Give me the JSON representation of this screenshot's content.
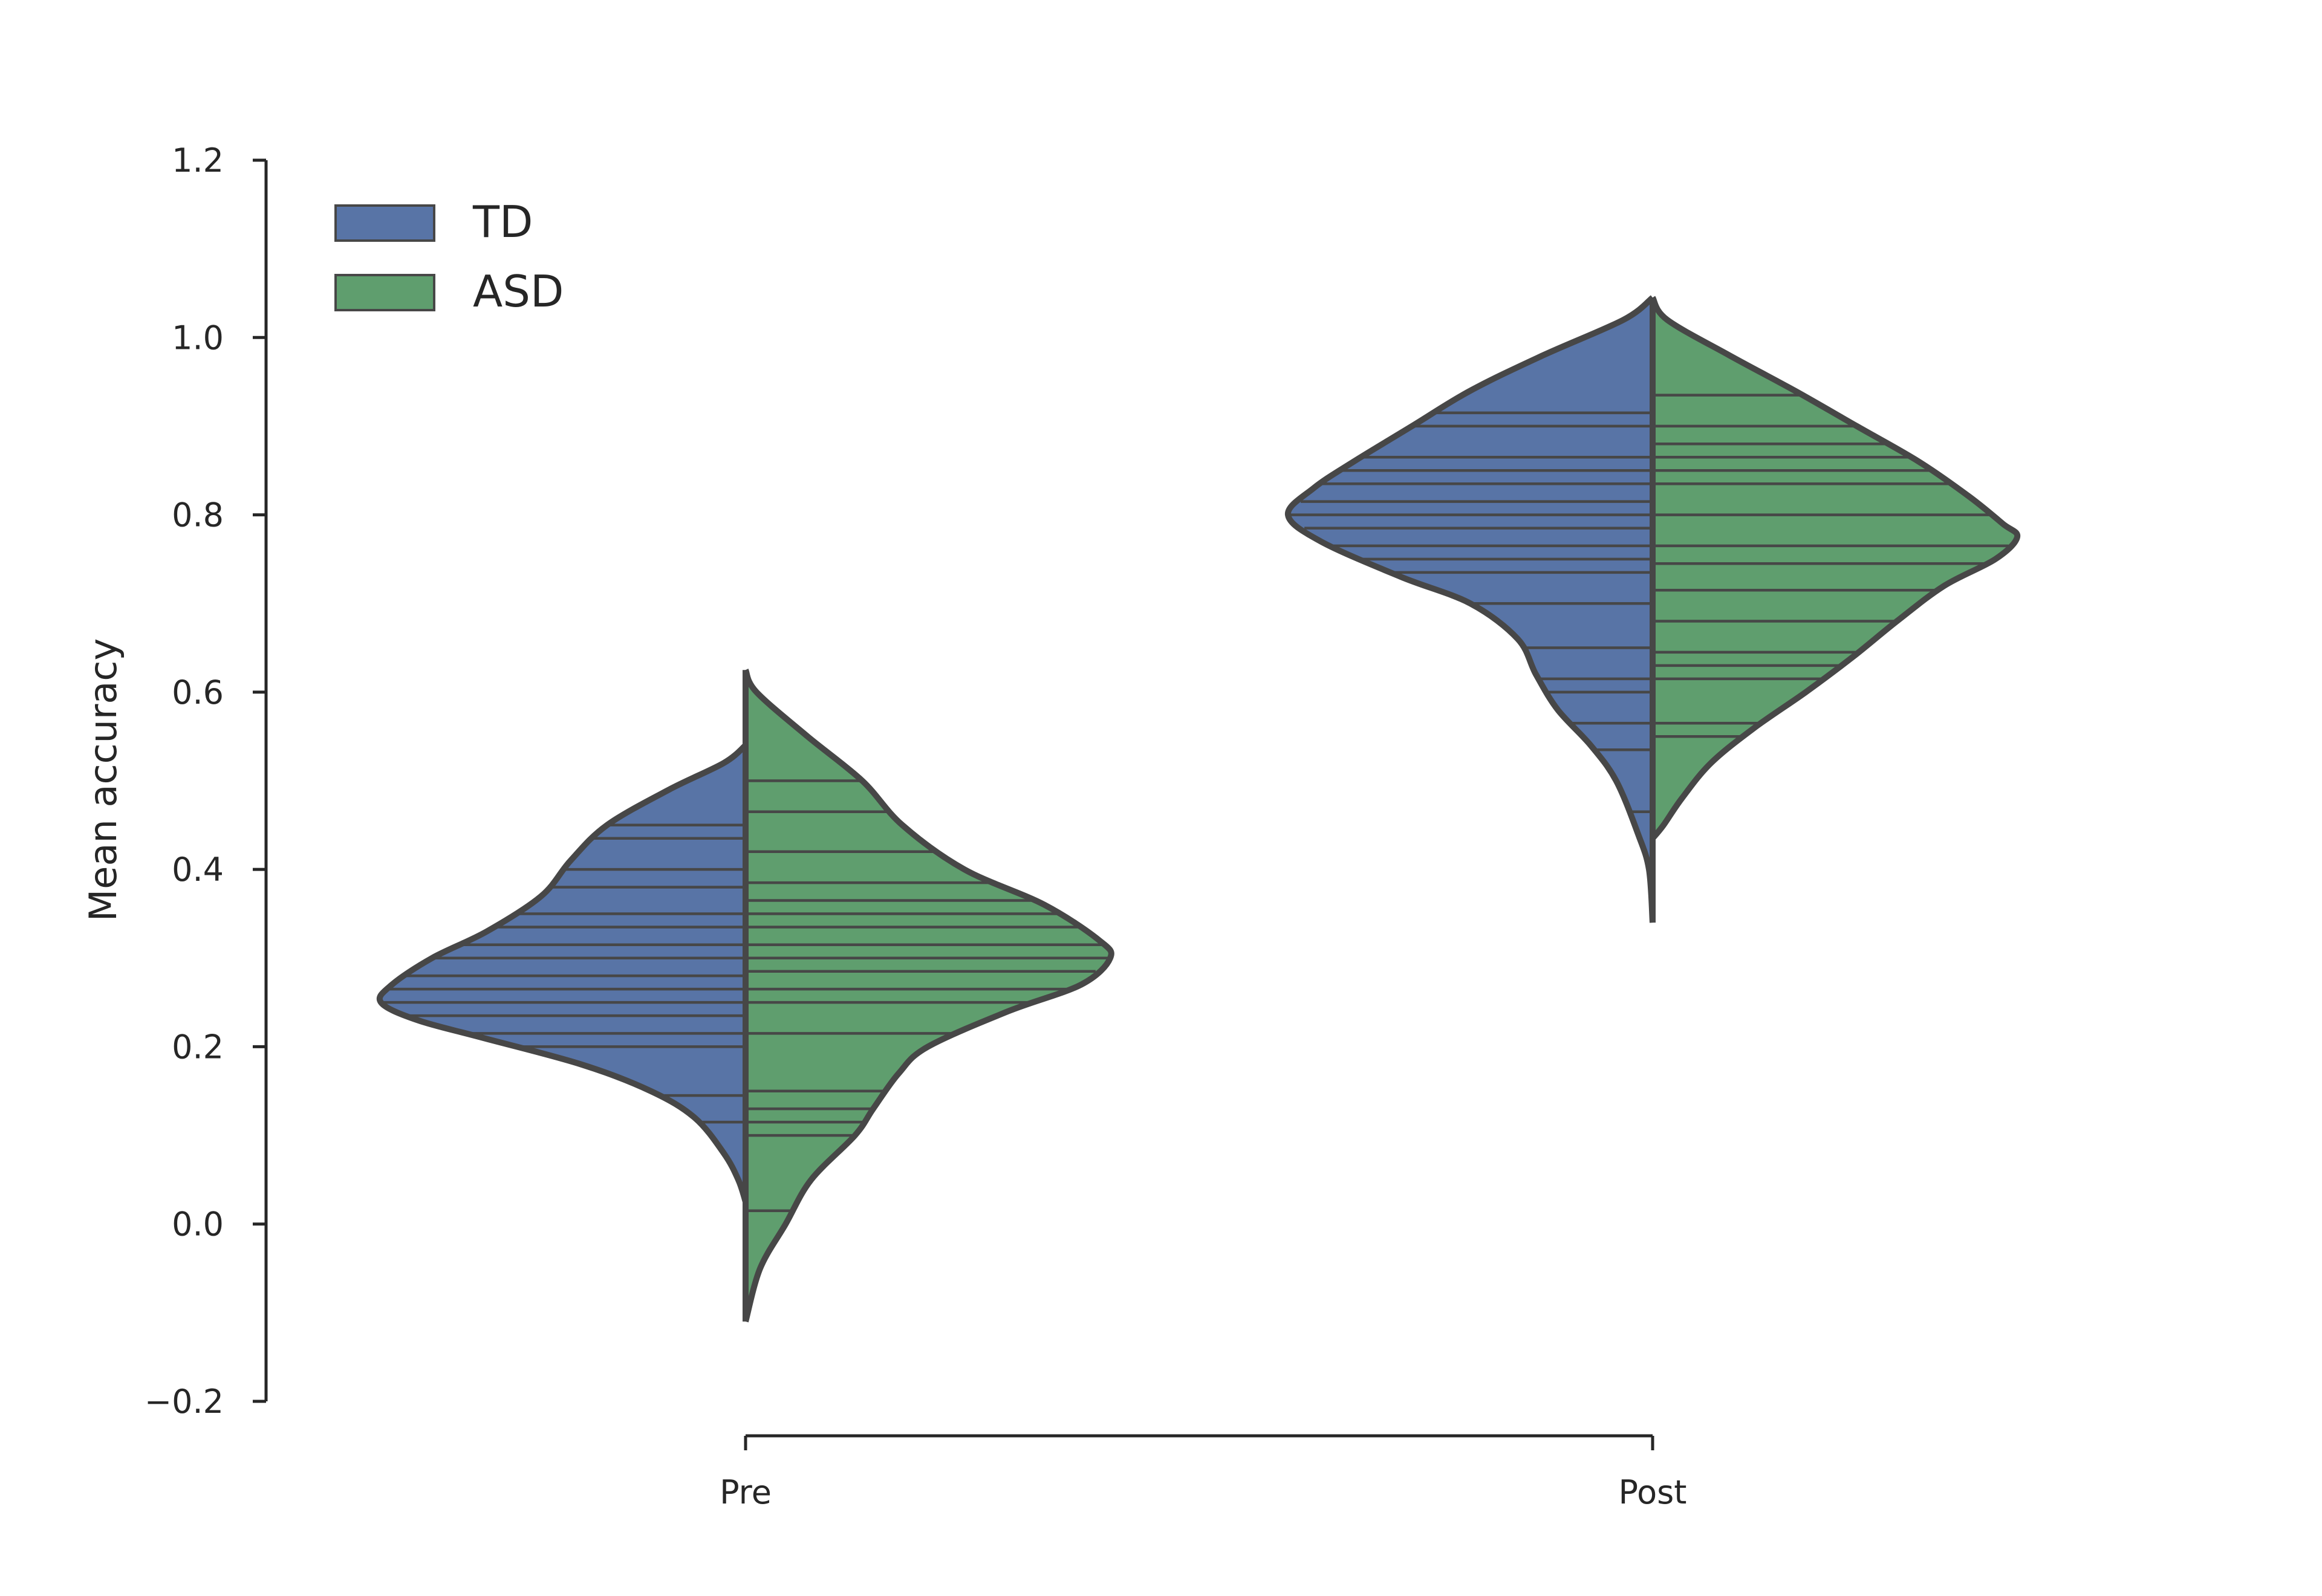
{
  "chart_data": {
    "type": "violin",
    "split": true,
    "categories": [
      "Pre",
      "Post"
    ],
    "ylabel": "Mean accuracy",
    "xlabel": "",
    "ylim": [
      -0.2,
      1.2
    ],
    "yticks": [
      -0.2,
      0.0,
      0.2,
      0.4,
      0.6,
      0.8,
      1.0,
      1.2
    ],
    "ytick_labels": [
      "−0.2",
      "0.0",
      "0.2",
      "0.4",
      "0.6",
      "0.8",
      "1.0",
      "1.2"
    ],
    "legend": {
      "placement": "top-left"
    },
    "series": [
      {
        "name": "TD",
        "color": "#5874a6",
        "groups": [
          {
            "category": "Pre",
            "density_profile": [
              [
                0.54,
                0.0
              ],
              [
                0.52,
                0.06
              ],
              [
                0.49,
                0.21
              ],
              [
                0.45,
                0.38
              ],
              [
                0.41,
                0.48
              ],
              [
                0.37,
                0.56
              ],
              [
                0.33,
                0.71
              ],
              [
                0.3,
                0.86
              ],
              [
                0.27,
                0.97
              ],
              [
                0.25,
                1.0
              ],
              [
                0.23,
                0.9
              ],
              [
                0.21,
                0.72
              ],
              [
                0.18,
                0.45
              ],
              [
                0.15,
                0.26
              ],
              [
                0.12,
                0.14
              ],
              [
                0.08,
                0.06
              ],
              [
                0.05,
                0.02
              ],
              [
                0.025,
                0.0
              ]
            ],
            "observations": [
              0.115,
              0.145,
              0.2,
              0.215,
              0.235,
              0.25,
              0.265,
              0.28,
              0.3,
              0.315,
              0.335,
              0.35,
              0.38,
              0.4,
              0.435,
              0.45
            ]
          },
          {
            "category": "Post",
            "density_profile": [
              [
                1.045,
                0.0
              ],
              [
                1.02,
                0.08
              ],
              [
                0.98,
                0.3
              ],
              [
                0.94,
                0.5
              ],
              [
                0.9,
                0.66
              ],
              [
                0.86,
                0.82
              ],
              [
                0.83,
                0.93
              ],
              [
                0.8,
                1.0
              ],
              [
                0.77,
                0.91
              ],
              [
                0.73,
                0.69
              ],
              [
                0.7,
                0.5
              ],
              [
                0.66,
                0.37
              ],
              [
                0.62,
                0.32
              ],
              [
                0.58,
                0.26
              ],
              [
                0.54,
                0.17
              ],
              [
                0.5,
                0.1
              ],
              [
                0.44,
                0.04
              ],
              [
                0.4,
                0.01
              ],
              [
                0.34,
                0.0
              ]
            ],
            "observations": [
              0.465,
              0.535,
              0.565,
              0.6,
              0.615,
              0.65,
              0.7,
              0.735,
              0.75,
              0.765,
              0.785,
              0.8,
              0.815,
              0.835,
              0.85,
              0.865,
              0.9,
              0.915
            ]
          }
        ]
      },
      {
        "name": "ASD",
        "color": "#5f9e6e",
        "groups": [
          {
            "category": "Pre",
            "density_profile": [
              [
                0.625,
                0.0
              ],
              [
                0.6,
                0.03
              ],
              [
                0.55,
                0.17
              ],
              [
                0.5,
                0.32
              ],
              [
                0.45,
                0.43
              ],
              [
                0.4,
                0.6
              ],
              [
                0.36,
                0.82
              ],
              [
                0.32,
                0.97
              ],
              [
                0.3,
                1.0
              ],
              [
                0.27,
                0.92
              ],
              [
                0.24,
                0.72
              ],
              [
                0.2,
                0.5
              ],
              [
                0.17,
                0.42
              ],
              [
                0.13,
                0.35
              ],
              [
                0.1,
                0.3
              ],
              [
                0.05,
                0.18
              ],
              [
                0.0,
                0.11
              ],
              [
                -0.05,
                0.04
              ],
              [
                -0.11,
                0.0
              ]
            ],
            "observations": [
              0.015,
              0.1,
              0.115,
              0.13,
              0.15,
              0.215,
              0.25,
              0.265,
              0.285,
              0.3,
              0.315,
              0.335,
              0.35,
              0.365,
              0.385,
              0.42,
              0.465,
              0.5
            ]
          },
          {
            "category": "Post",
            "density_profile": [
              [
                1.045,
                0.0
              ],
              [
                1.02,
                0.04
              ],
              [
                0.98,
                0.21
              ],
              [
                0.94,
                0.39
              ],
              [
                0.9,
                0.56
              ],
              [
                0.86,
                0.73
              ],
              [
                0.82,
                0.87
              ],
              [
                0.79,
                0.96
              ],
              [
                0.775,
                1.0
              ],
              [
                0.75,
                0.94
              ],
              [
                0.72,
                0.8
              ],
              [
                0.68,
                0.67
              ],
              [
                0.64,
                0.55
              ],
              [
                0.6,
                0.42
              ],
              [
                0.56,
                0.28
              ],
              [
                0.52,
                0.16
              ],
              [
                0.48,
                0.08
              ],
              [
                0.45,
                0.03
              ],
              [
                0.435,
                0.0
              ]
            ],
            "observations": [
              0.55,
              0.565,
              0.615,
              0.63,
              0.645,
              0.68,
              0.715,
              0.745,
              0.765,
              0.8,
              0.835,
              0.85,
              0.865,
              0.88,
              0.9,
              0.935
            ]
          }
        ]
      }
    ]
  }
}
